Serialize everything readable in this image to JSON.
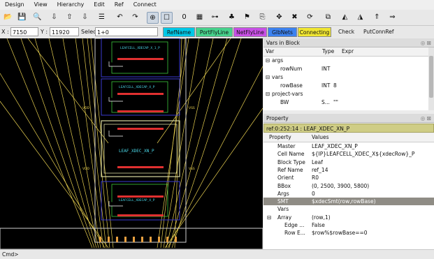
{
  "menu": [
    "Design",
    "View",
    "Hierarchy",
    "Edit",
    "Ref",
    "Connect"
  ],
  "toolbar": {
    "icons": [
      "folder-open-icon",
      "save-icon",
      "search-icon",
      "push-down-icon",
      "fly-up-icon",
      "fly-down-icon",
      "hierarchy-icon",
      "undo-icon",
      "redo-icon",
      "world-icon",
      "rect-select-icon",
      "zero-icon",
      "grid-icon",
      "node-icon",
      "plant-icon",
      "flag-icon",
      "copy-icon",
      "move-icon",
      "delete-icon",
      "rotate-icon",
      "stretch-icon",
      "mirror-x-icon",
      "mirror-y-icon",
      "nav-up-icon",
      "nav-right-icon"
    ],
    "glyphs": [
      "📂",
      "💾",
      "🔍",
      "⇩",
      "⇧",
      "⇩",
      "☰",
      "↶",
      "↷",
      "⊕",
      "☐",
      "0",
      "▦",
      "⊶",
      "♣",
      "⚑",
      "⎘",
      "✥",
      "✖",
      "⟳",
      "⧉",
      "◭",
      "◮",
      "⇑",
      "⇒"
    ]
  },
  "coords": {
    "x_label": "X :",
    "x_value": "7150",
    "y_label": "Y :",
    "y_value": "11920",
    "select_label": "Select :",
    "select_value": "1+0"
  },
  "buttons": [
    {
      "label": "RefName",
      "color": "#00c8e6"
    },
    {
      "label": "PortFlyLine",
      "color": "#46d28c"
    },
    {
      "label": "NetFlyLine",
      "color": "#c850e6"
    },
    {
      "label": "GlbNets",
      "color": "#3c82f0"
    },
    {
      "label": "Connecting",
      "color": "#f0e632"
    },
    {
      "label": "Check",
      "color": ""
    },
    {
      "label": "PutConnRef",
      "color": ""
    }
  ],
  "canvas": {
    "labels": [
      "LEAFCELL_XDECAP_X_1_P",
      "LEAFCELL_XDECAP_X_P",
      "LEAF_XDEC_XN_P",
      "LEAFCELL_XDECAP_X_P"
    ],
    "pins": [
      "VDD",
      "VSS",
      "VDD",
      "VSS"
    ]
  },
  "vars_panel": {
    "title": "Vars in Block",
    "col_var": "Var",
    "col_type": "Type",
    "col_expr": "Expr",
    "rows": [
      {
        "var": "args",
        "type": "",
        "expr": "",
        "indent": 0,
        "tree": "⊟"
      },
      {
        "var": "rowNum",
        "type": "INT",
        "expr": "",
        "indent": 2,
        "tree": ""
      },
      {
        "var": "vars",
        "type": "",
        "expr": "",
        "indent": 0,
        "tree": "⊟"
      },
      {
        "var": "rowBase",
        "type": "INT",
        "expr": "8",
        "indent": 2,
        "tree": ""
      },
      {
        "var": "project-vars",
        "type": "",
        "expr": "",
        "indent": 0,
        "tree": "⊟"
      },
      {
        "var": "BW",
        "type": "S...",
        "expr": "\"\"",
        "indent": 2,
        "tree": ""
      }
    ]
  },
  "property_panel": {
    "title": "Property",
    "ref": "ref:0:252:14 : LEAF_XDEC_XN_P",
    "col_property": "Property",
    "col_values": "Values",
    "rows": [
      {
        "key": "Master",
        "value": "LEAF_XDEC_XN_P",
        "selected": false,
        "tree": ""
      },
      {
        "key": "Cell Name",
        "value": "${IP}LEAFCELL_XDEC_X${xdecRow}_P",
        "selected": false,
        "tree": ""
      },
      {
        "key": "Block Type",
        "value": "Leaf",
        "selected": false,
        "tree": ""
      },
      {
        "key": "Ref Name",
        "value": "ref_14",
        "selected": false,
        "tree": ""
      },
      {
        "key": "Orient",
        "value": "R0",
        "selected": false,
        "tree": ""
      },
      {
        "key": "BBox",
        "value": "(0, 2500, 3900, 5800)",
        "selected": false,
        "tree": ""
      },
      {
        "key": "Args",
        "value": "0",
        "selected": false,
        "tree": ""
      },
      {
        "key": "SMT",
        "value": "$xdecSmt(row,rowBase)",
        "selected": true,
        "tree": ""
      },
      {
        "key": "Vars",
        "value": "",
        "selected": false,
        "tree": ""
      },
      {
        "key": "Array",
        "value": "(row,1)",
        "selected": false,
        "tree": "⊟"
      },
      {
        "key": "Edge ...",
        "value": "False",
        "selected": false,
        "tree": "",
        "child": true
      },
      {
        "key": "Row E...",
        "value": "$row%$rowBase==0",
        "selected": false,
        "tree": "",
        "child": true
      }
    ]
  },
  "status": {
    "prompt": "Cmd>"
  },
  "panel_controls": "◎ ⊠"
}
